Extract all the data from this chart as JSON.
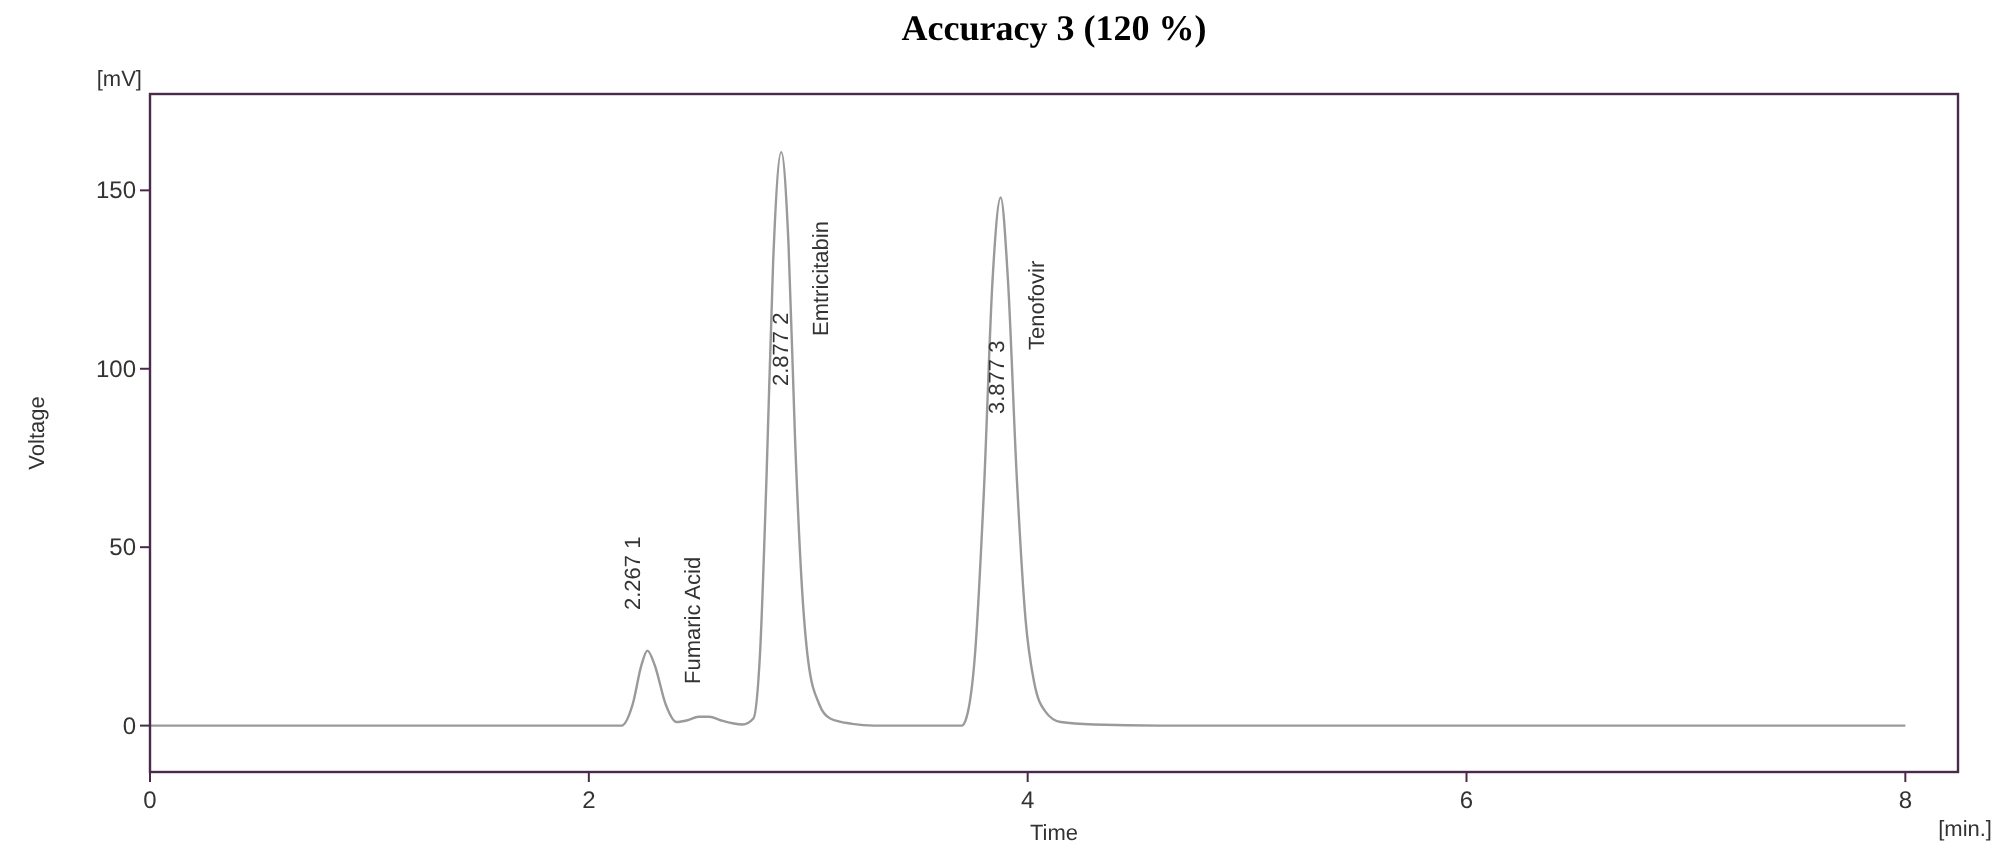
{
  "chart_data": {
    "type": "line",
    "title": "Accuracy 3 (120 %)",
    "xlabel": "Time",
    "ylabel": "Voltage",
    "x": [
      0,
      2.1,
      2.15,
      2.2,
      2.24,
      2.267,
      2.3,
      2.35,
      2.4,
      2.45,
      2.5,
      2.55,
      2.6,
      2.7,
      2.75,
      2.78,
      2.81,
      2.84,
      2.877,
      2.91,
      2.94,
      2.97,
      3.0,
      3.05,
      3.1,
      3.2,
      3.3,
      3.7,
      3.72,
      3.76,
      3.8,
      3.84,
      3.877,
      3.91,
      3.95,
      3.99,
      4.03,
      4.08,
      4.15,
      4.3,
      4.6,
      8
    ],
    "series": [
      {
        "color": "#9a9a9a",
        "values": [
          0,
          0,
          0,
          6,
          17,
          21,
          17,
          6,
          1,
          1.5,
          2.5,
          2.5,
          1.5,
          0.3,
          2,
          20,
          70,
          130,
          160.7,
          135,
          80,
          40,
          18,
          6,
          2,
          0.5,
          0,
          0,
          2,
          20,
          65,
          125,
          148,
          125,
          70,
          30,
          12,
          4,
          1,
          0.3,
          0,
          0
        ]
      }
    ],
    "xlim": [
      0,
      8.24
    ],
    "ylim": [
      -13,
      177
    ],
    "xticks": [
      0,
      2,
      4,
      6,
      8
    ],
    "yticks": [
      0,
      50,
      100,
      150
    ],
    "grid": false,
    "marker": "none",
    "line_style": "solid",
    "annotations": [
      "[mV]",
      "[min.]",
      "2.267  1",
      "Fumaric Acid",
      "2.877  2",
      "Emtricitabin",
      "3.877  3",
      "Tenofovir"
    ]
  }
}
